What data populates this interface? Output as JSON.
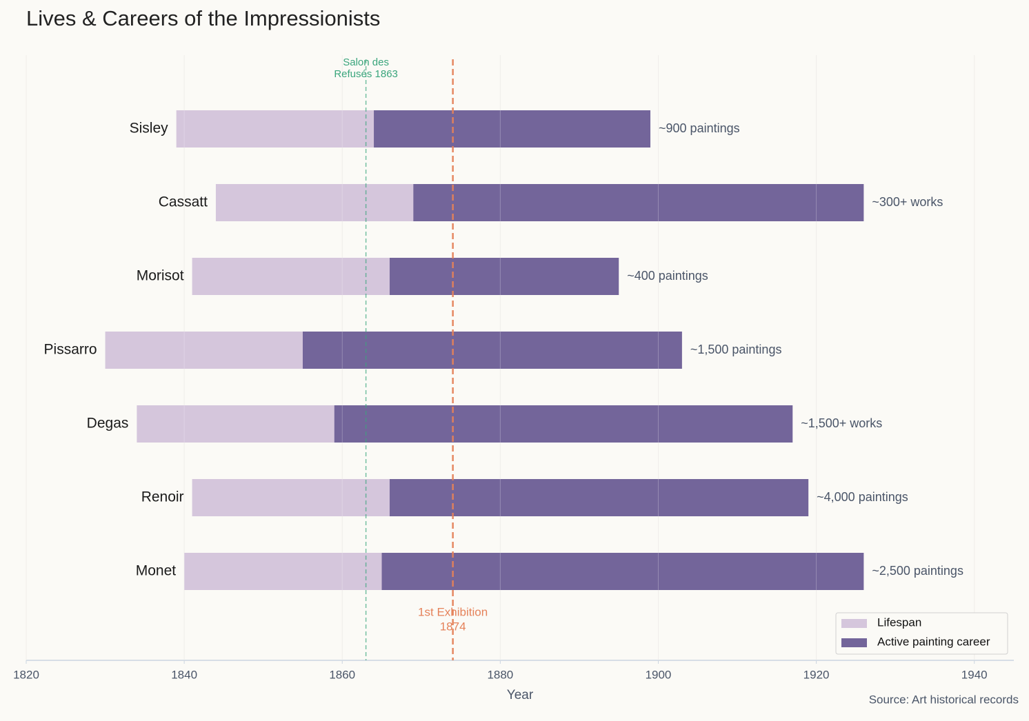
{
  "chart_data": {
    "type": "bar",
    "orientation": "horizontal",
    "title": "Lives & Careers of the Impressionists",
    "xlabel": "Year",
    "source": "Source: Art historical records",
    "categories": [
      "Monet",
      "Renoir",
      "Degas",
      "Pissarro",
      "Morisot",
      "Cassatt",
      "Sisley"
    ],
    "series": [
      {
        "name": "Lifespan",
        "color": "#d5c6dc",
        "start": [
          1840,
          1841,
          1834,
          1830,
          1841,
          1844,
          1839
        ],
        "end": [
          1926,
          1919,
          1917,
          1903,
          1895,
          1926,
          1899
        ]
      },
      {
        "name": "Active painting career",
        "color": "#73659a",
        "start": [
          1865,
          1866,
          1859,
          1855,
          1866,
          1869,
          1864
        ],
        "end": [
          1926,
          1919,
          1917,
          1903,
          1895,
          1926,
          1899
        ]
      }
    ],
    "bar_labels": [
      "~2,500 paintings",
      "~4,000 paintings",
      "~1,500+ works",
      "~1,500 paintings",
      "~400 paintings",
      "~300+ works",
      "~900 paintings"
    ],
    "vlines": [
      {
        "x": 1863,
        "color": "#3aa57c",
        "lines": [
          "Salon des",
          "Refusés 1863"
        ],
        "position": "top"
      },
      {
        "x": 1874,
        "color": "#e5825a",
        "lines": [
          "1st Exhibition",
          "1874"
        ],
        "position": "bottom"
      }
    ],
    "xlim": [
      1820,
      1945
    ],
    "xticks": [
      1820,
      1840,
      1860,
      1880,
      1900,
      1920,
      1940
    ],
    "grid": true,
    "legend": "lower right"
  }
}
